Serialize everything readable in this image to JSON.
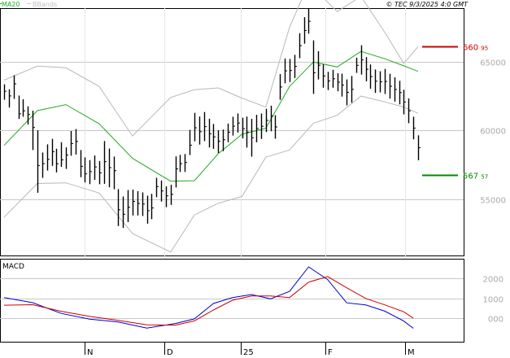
{
  "header": {
    "ma_label": "MA20",
    "bbands_label": "BBands",
    "copyright": "© TEC 9/3/2025 4:0 GMT"
  },
  "colors": {
    "price_bar": "#000000",
    "ma": "#22aa22",
    "bbands": "#b8b8b8",
    "resistance": "#cc0000",
    "support": "#008800",
    "macd": "#0000cc",
    "signal": "#cc0000",
    "grid": "#c8c8c8",
    "axis_label": "#aaaaaa"
  },
  "chart_data": [
    {
      "type": "bar",
      "name": "price",
      "x": [
        "N",
        "D",
        "25",
        "F",
        "M"
      ],
      "ylim": [
        50900,
        68900
      ],
      "yticks": [
        55000,
        60000,
        65000
      ],
      "ytick_labels": [
        "55000",
        "60000",
        "65000"
      ],
      "levels": [
        {
          "label": "660.95",
          "label_main": "660",
          "label_small": "95",
          "value": 66095,
          "color": "#cc0000"
        },
        {
          "label": "567.57",
          "label_main": "567",
          "label_small": "57",
          "value": 56757,
          "color": "#008800"
        }
      ],
      "ohlc": [
        {
          "h": 63356,
          "l": 62234,
          "c": 62856
        },
        {
          "h": 62998,
          "l": 61662,
          "c": 62513
        },
        {
          "h": 64014,
          "l": 62299,
          "c": 63391
        },
        {
          "h": 62542,
          "l": 60834,
          "c": 61206
        },
        {
          "h": 62271,
          "l": 60999,
          "c": 61428
        },
        {
          "h": 61755,
          "l": 60427,
          "c": 61161
        },
        {
          "h": 61442,
          "l": 58576,
          "c": 60211
        },
        {
          "h": 60014,
          "l": 55464,
          "c": 57451
        },
        {
          "h": 58391,
          "l": 56550,
          "c": 57586
        },
        {
          "h": 58987,
          "l": 57084,
          "c": 57901
        },
        {
          "h": 59384,
          "l": 57423,
          "c": 58464
        },
        {
          "h": 58670,
          "l": 56947,
          "c": 57574
        },
        {
          "h": 59143,
          "l": 57347,
          "c": 57859
        },
        {
          "h": 58767,
          "l": 57198,
          "c": 58213
        },
        {
          "h": 59960,
          "l": 58158,
          "c": 59046
        },
        {
          "h": 60101,
          "l": 58248,
          "c": 59200
        },
        {
          "h": 58574,
          "l": 56599,
          "c": 57387
        },
        {
          "h": 58039,
          "l": 56209,
          "c": 56838
        },
        {
          "h": 57837,
          "l": 56095,
          "c": 57007
        },
        {
          "h": 58177,
          "l": 56405,
          "c": 57348
        },
        {
          "h": 57774,
          "l": 56089,
          "c": 56911
        },
        {
          "h": 59229,
          "l": 56116,
          "c": 57729
        },
        {
          "h": 58686,
          "l": 55868,
          "c": 57295
        },
        {
          "h": 58099,
          "l": 55722,
          "c": 57071
        },
        {
          "h": 55734,
          "l": 53045,
          "c": 54230
        },
        {
          "h": 55195,
          "l": 52905,
          "c": 53904
        },
        {
          "h": 55661,
          "l": 53329,
          "c": 54414
        },
        {
          "h": 55696,
          "l": 53815,
          "c": 54840
        },
        {
          "h": 55586,
          "l": 53813,
          "c": 54688
        },
        {
          "h": 55491,
          "l": 53770,
          "c": 54648
        },
        {
          "h": 55251,
          "l": 53218,
          "c": 54162
        },
        {
          "h": 55390,
          "l": 53543,
          "c": 54356
        },
        {
          "h": 56554,
          "l": 55146,
          "c": 55915
        },
        {
          "h": 56358,
          "l": 54826,
          "c": 55593
        },
        {
          "h": 55927,
          "l": 54415,
          "c": 55241
        },
        {
          "h": 56047,
          "l": 54585,
          "c": 55346
        },
        {
          "h": 58114,
          "l": 55851,
          "c": 57201
        },
        {
          "h": 58216,
          "l": 56979,
          "c": 57583
        },
        {
          "h": 58281,
          "l": 56983,
          "c": 57667
        },
        {
          "h": 60037,
          "l": 58211,
          "c": 58926
        },
        {
          "h": 61282,
          "l": 59213,
          "c": 60191
        },
        {
          "h": 61009,
          "l": 58970,
          "c": 59910
        },
        {
          "h": 61337,
          "l": 59224,
          "c": 60281
        },
        {
          "h": 60854,
          "l": 58755,
          "c": 59756
        },
        {
          "h": 60472,
          "l": 58665,
          "c": 59535
        },
        {
          "h": 60011,
          "l": 58362,
          "c": 59216
        },
        {
          "h": 60068,
          "l": 58493,
          "c": 59318
        },
        {
          "h": 60502,
          "l": 59150,
          "c": 59869
        },
        {
          "h": 60994,
          "l": 59625,
          "c": 60309
        },
        {
          "h": 61233,
          "l": 59844,
          "c": 60538
        },
        {
          "h": 60931,
          "l": 59418,
          "c": 60133
        },
        {
          "h": 61009,
          "l": 58749,
          "c": 59875
        },
        {
          "h": 60839,
          "l": 58094,
          "c": 59466
        },
        {
          "h": 61139,
          "l": 59134,
          "c": 60136
        },
        {
          "h": 61232,
          "l": 59377,
          "c": 60301
        },
        {
          "h": 61575,
          "l": 59883,
          "c": 60729
        },
        {
          "h": 61802,
          "l": 59943,
          "c": 61058
        },
        {
          "h": 61110,
          "l": 59403,
          "c": 60256
        },
        {
          "h": 64096,
          "l": 62232,
          "c": 63164
        },
        {
          "h": 65232,
          "l": 63432,
          "c": 64332
        },
        {
          "h": 65197,
          "l": 63521,
          "c": 64359
        },
        {
          "h": 65503,
          "l": 63822,
          "c": 64662
        },
        {
          "h": 67079,
          "l": 65258,
          "c": 66168
        },
        {
          "h": 68244,
          "l": 66314,
          "c": 67279
        },
        {
          "h": 68895,
          "l": 67040,
          "c": 67946
        },
        {
          "h": 66558,
          "l": 62658,
          "c": 64200
        },
        {
          "h": 65769,
          "l": 63716,
          "c": 64742
        },
        {
          "h": 64811,
          "l": 63111,
          "c": 63961
        },
        {
          "h": 64262,
          "l": 62935,
          "c": 63598
        },
        {
          "h": 64409,
          "l": 63108,
          "c": 63759
        },
        {
          "h": 64166,
          "l": 62857,
          "c": 63511
        },
        {
          "h": 64133,
          "l": 62466,
          "c": 63299
        },
        {
          "h": 63715,
          "l": 61826,
          "c": 62770
        },
        {
          "h": 63963,
          "l": 62015,
          "c": 62989
        },
        {
          "h": 65294,
          "l": 64186,
          "c": 64740
        },
        {
          "h": 66202,
          "l": 64066,
          "c": 65134
        },
        {
          "h": 65336,
          "l": 63575,
          "c": 64456
        },
        {
          "h": 64804,
          "l": 63036,
          "c": 63920
        },
        {
          "h": 64434,
          "l": 62732,
          "c": 63583
        },
        {
          "h": 64305,
          "l": 62764,
          "c": 63534
        },
        {
          "h": 64478,
          "l": 62653,
          "c": 63565
        },
        {
          "h": 64119,
          "l": 62317,
          "c": 63218
        },
        {
          "h": 63866,
          "l": 62096,
          "c": 62981
        },
        {
          "h": 63609,
          "l": 61897,
          "c": 62753
        },
        {
          "h": 62964,
          "l": 61167,
          "c": 62065
        },
        {
          "h": 62327,
          "l": 60526,
          "c": 61426
        },
        {
          "h": 60997,
          "l": 59352,
          "c": 60174
        },
        {
          "h": 59647,
          "l": 57830,
          "c": 58738
        }
      ],
      "ma20": [
        [
          0,
          58910
        ],
        [
          7,
          61440
        ],
        [
          13,
          61880
        ],
        [
          20,
          60480
        ],
        [
          27,
          57970
        ],
        [
          35,
          56305
        ],
        [
          40,
          56340
        ],
        [
          45,
          58310
        ],
        [
          50,
          59720
        ],
        [
          55,
          60160
        ],
        [
          60,
          63200
        ],
        [
          65,
          64980
        ],
        [
          70,
          64620
        ],
        [
          75,
          65750
        ],
        [
          80,
          65220
        ],
        [
          84,
          64700
        ],
        [
          87,
          64300
        ]
      ],
      "bb_upper": [
        [
          0,
          63660
        ],
        [
          7,
          64680
        ],
        [
          13,
          64560
        ],
        [
          20,
          63200
        ],
        [
          27,
          59600
        ],
        [
          35,
          62400
        ],
        [
          40,
          62960
        ],
        [
          45,
          63100
        ],
        [
          50,
          62350
        ],
        [
          55,
          61700
        ],
        [
          60,
          67500
        ],
        [
          64,
          70700
        ],
        [
          70,
          68650
        ],
        [
          75,
          69750
        ],
        [
          80,
          67150
        ],
        [
          84,
          64880
        ],
        [
          87,
          66100
        ]
      ],
      "bb_lower": [
        [
          0,
          53690
        ],
        [
          7,
          56140
        ],
        [
          13,
          56190
        ],
        [
          20,
          55440
        ],
        [
          27,
          52500
        ],
        [
          35,
          51150
        ],
        [
          40,
          53850
        ],
        [
          45,
          54700
        ],
        [
          50,
          55200
        ],
        [
          55,
          58050
        ],
        [
          60,
          58580
        ],
        [
          65,
          60530
        ],
        [
          70,
          61100
        ],
        [
          75,
          62500
        ],
        [
          80,
          62080
        ],
        [
          84,
          61700
        ],
        [
          87,
          61250
        ]
      ]
    },
    {
      "type": "line",
      "name": "MACD",
      "title": "MACD",
      "ylim": [
        -1200,
        3000
      ],
      "yticks": [
        2000,
        1000,
        0
      ],
      "ytick_labels": [
        "2000",
        "1000",
        "000"
      ],
      "series": [
        {
          "values": [
            [
              0,
              1030
            ],
            [
              6,
              776
            ],
            [
              12,
              232
            ],
            [
              18,
              -58
            ],
            [
              24,
              -200
            ],
            [
              30,
              -507
            ],
            [
              36,
              -276
            ],
            [
              40,
              -45
            ],
            [
              44,
              736
            ],
            [
              48,
              1033
            ],
            [
              52,
              1190
            ],
            [
              56,
              970
            ],
            [
              60,
              1350
            ],
            [
              64,
              2587
            ],
            [
              68,
              1946
            ],
            [
              72,
              770
            ],
            [
              76,
              663
            ],
            [
              80,
              348
            ],
            [
              84,
              -156
            ],
            [
              86,
              -519
            ]
          ]
        },
        {
          "values": [
            [
              0,
              649
            ],
            [
              6,
              673
            ],
            [
              12,
              340
            ],
            [
              18,
              82
            ],
            [
              24,
              -117
            ],
            [
              30,
              -346
            ],
            [
              36,
              -361
            ],
            [
              40,
              -147
            ],
            [
              44,
              407
            ],
            [
              48,
              902
            ],
            [
              52,
              1115
            ],
            [
              56,
              1120
            ],
            [
              60,
              1037
            ],
            [
              64,
              1814
            ],
            [
              68,
              2098
            ],
            [
              72,
              1529
            ],
            [
              76,
              991
            ],
            [
              80,
              667
            ],
            [
              84,
              315
            ],
            [
              86,
              -11
            ]
          ]
        }
      ]
    }
  ]
}
